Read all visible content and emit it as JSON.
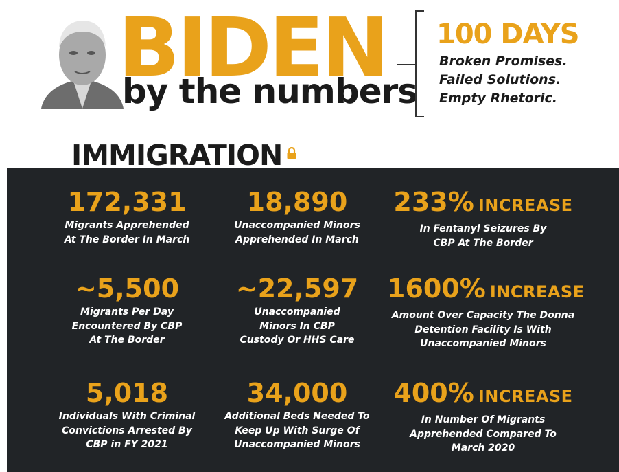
{
  "header": {
    "title": "BIDEN",
    "subtitle": "by the numbers",
    "badge": "100 DAYS",
    "taglines": [
      "Broken Promises.",
      "Failed Solutions.",
      "Empty Rhetoric."
    ]
  },
  "section": {
    "title": "IMMIGRATION",
    "stats": [
      {
        "value": "172,331",
        "lines": [
          "Migrants Apprehended",
          "At The Border In March"
        ]
      },
      {
        "value": "18,890",
        "lines": [
          "Unaccompanied Minors",
          "Apprehended In March"
        ]
      },
      {
        "value": "233%",
        "suffix": "INCREASE",
        "lines": [
          "In Fentanyl Seizures By",
          "CBP At The Border"
        ]
      },
      {
        "value": "~5,500",
        "lines": [
          "Migrants Per Day",
          "Encountered By CBP",
          "At The Border"
        ]
      },
      {
        "value": "~22,597",
        "lines": [
          "Unaccompanied",
          "Minors In CBP",
          "Custody Or HHS Care"
        ]
      },
      {
        "value": "1600%",
        "suffix": "INCREASE",
        "lines": [
          "Amount Over Capacity The Donna",
          "Detention Facility Is With",
          "Unaccompanied Minors"
        ]
      },
      {
        "value": "5,018",
        "lines": [
          "Individuals With Criminal",
          "Convictions Arrested By",
          "CBP in FY 2021"
        ]
      },
      {
        "value": "34,000",
        "lines": [
          "Additional Beds Needed To",
          "Keep Up With Surge Of",
          "Unaccompanied Minors"
        ]
      },
      {
        "value": "400%",
        "suffix": "INCREASE",
        "lines": [
          "In Number Of Migrants",
          "Apprehended Compared To",
          "March 2020"
        ]
      }
    ]
  }
}
